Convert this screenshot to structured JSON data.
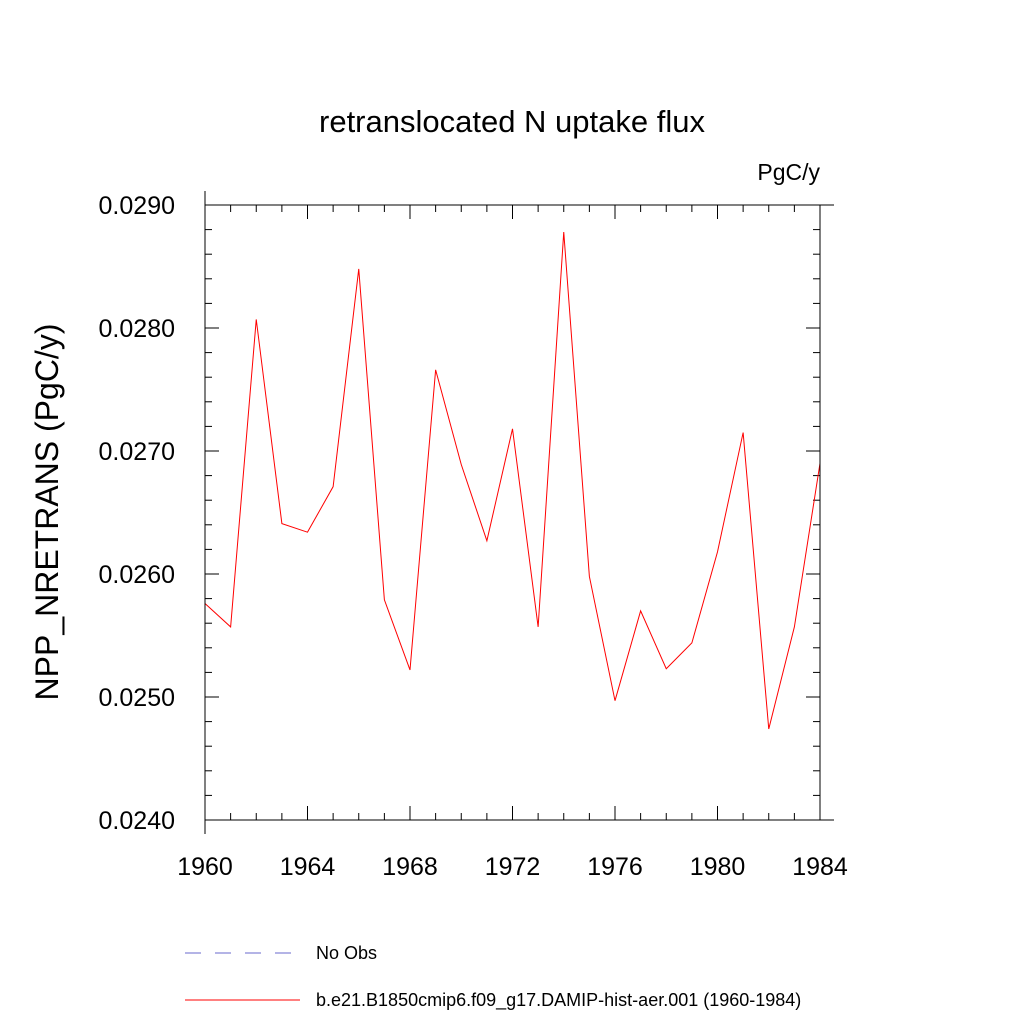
{
  "chart_data": {
    "type": "line",
    "title": "retranslocated N uptake flux",
    "units_label": "PgC/y",
    "ylabel": "NPP_NRETRANS  (PgC/y)",
    "xlabel": "",
    "xlim": [
      1960,
      1984
    ],
    "ylim": [
      0.024,
      0.029
    ],
    "x_ticks": [
      1960,
      1964,
      1968,
      1972,
      1976,
      1980,
      1984
    ],
    "x_tick_labels": [
      "1960",
      "1964",
      "1968",
      "1972",
      "1976",
      "1980",
      "1984"
    ],
    "y_ticks": [
      0.024,
      0.025,
      0.026,
      0.027,
      0.028,
      0.029
    ],
    "y_tick_labels": [
      "0.0240",
      "0.0250",
      "0.0260",
      "0.0270",
      "0.0280",
      "0.0290"
    ],
    "grid": false,
    "legend_position": "bottom",
    "series": [
      {
        "name": "b.e21.B1850cmip6.f09_g17.DAMIP-hist-aer.001 (1960-1984)",
        "color": "#ff0000",
        "style": "solid",
        "x": [
          1960,
          1961,
          1962,
          1963,
          1964,
          1965,
          1966,
          1967,
          1968,
          1969,
          1970,
          1971,
          1972,
          1973,
          1974,
          1975,
          1976,
          1977,
          1978,
          1979,
          1980,
          1981,
          1982,
          1983,
          1984
        ],
        "y": [
          0.02576,
          0.02557,
          0.02807,
          0.02641,
          0.02634,
          0.02671,
          0.02848,
          0.02579,
          0.02522,
          0.02766,
          0.02689,
          0.02627,
          0.02718,
          0.02557,
          0.02878,
          0.02598,
          0.02497,
          0.0257,
          0.02523,
          0.02544,
          0.02618,
          0.02715,
          0.02474,
          0.02557,
          0.0269
        ]
      }
    ],
    "legend": [
      {
        "label": "No Obs",
        "color": "#6a6acd",
        "style": "dashed"
      },
      {
        "label": "b.e21.B1850cmip6.f09_g17.DAMIP-hist-aer.001 (1960-1984)",
        "color": "#ff0000",
        "style": "solid"
      }
    ]
  }
}
